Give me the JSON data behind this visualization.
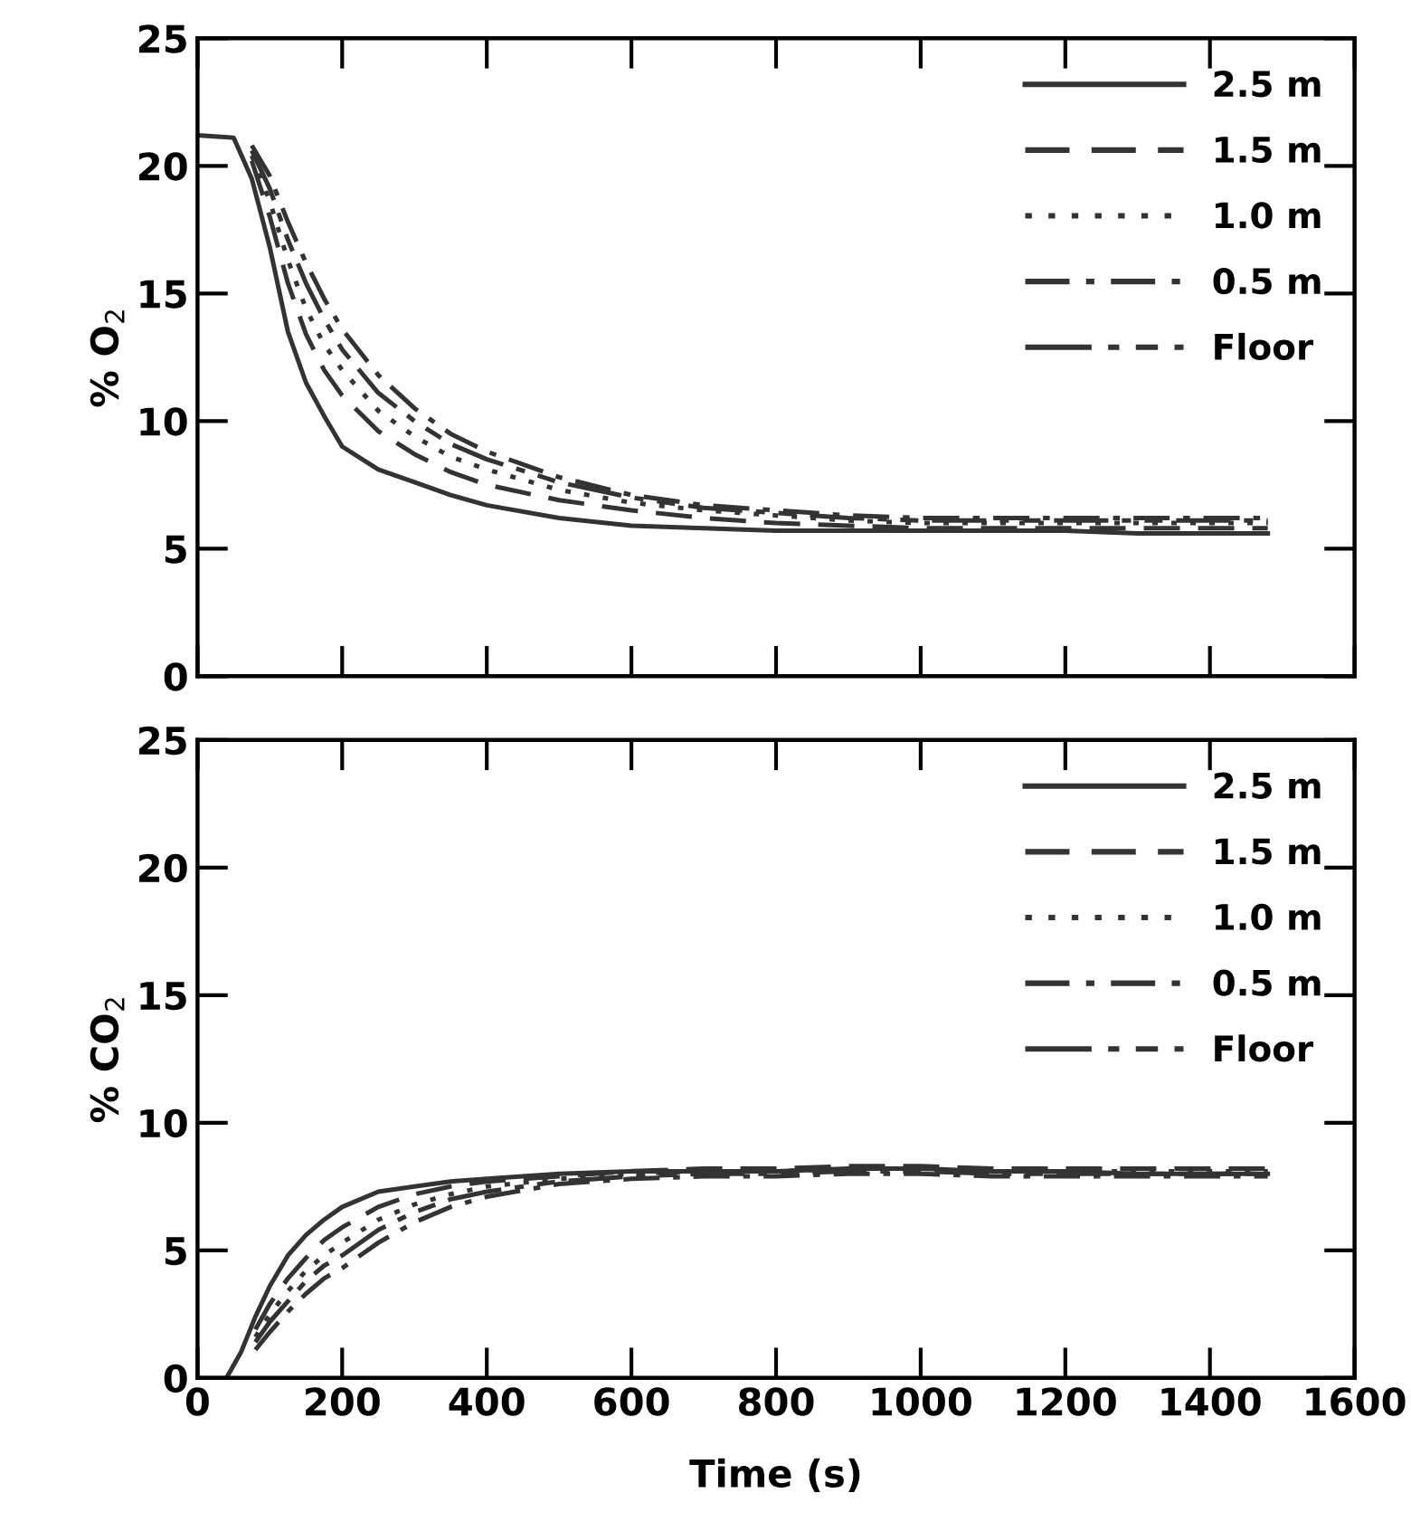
{
  "chart_data": [
    {
      "type": "line",
      "ylabel": "% O$_{2}$",
      "xlim": [
        0,
        1600
      ],
      "ylim": [
        0,
        25
      ],
      "xticks": [
        0,
        200,
        400,
        600,
        800,
        1000,
        1200,
        1400,
        1600
      ],
      "yticks": [
        0,
        5,
        10,
        15,
        20,
        25
      ],
      "tick_labels": "y",
      "legend": "top right",
      "grid": false,
      "x": [
        75,
        100,
        125,
        150,
        175,
        200,
        250,
        300,
        350,
        400,
        500,
        600,
        700,
        800,
        900,
        1000,
        1100,
        1200,
        1300,
        1400,
        1480
      ],
      "series": [
        {
          "name": "2.5 m",
          "color": "#333333",
          "line_style": "solid",
          "x": [
            0,
            50,
            75,
            100,
            125,
            150,
            175,
            200,
            250,
            300,
            350,
            400,
            500,
            600,
            700,
            800,
            900,
            1000,
            1100,
            1200,
            1300,
            1400,
            1480
          ],
          "values": [
            21.2,
            21.1,
            19.5,
            16.8,
            13.5,
            11.5,
            10.2,
            9.0,
            8.1,
            7.6,
            7.1,
            6.7,
            6.2,
            5.9,
            5.8,
            5.7,
            5.7,
            5.7,
            5.7,
            5.7,
            5.6,
            5.6,
            5.6
          ]
        },
        {
          "name": "1.5 m",
          "color": "#333333",
          "line_style": "dashed",
          "values": [
            20.2,
            18.0,
            15.4,
            13.4,
            12.0,
            11.0,
            9.6,
            8.7,
            8.0,
            7.5,
            6.9,
            6.5,
            6.2,
            6.0,
            5.9,
            5.8,
            5.8,
            5.8,
            5.8,
            5.8,
            5.8
          ]
        },
        {
          "name": "1.0 m",
          "color": "#333333",
          "line_style": "dotted",
          "values": [
            20.4,
            18.6,
            16.3,
            14.4,
            13.0,
            12.0,
            10.4,
            9.4,
            8.6,
            8.1,
            7.3,
            6.8,
            6.5,
            6.3,
            6.1,
            6.0,
            6.0,
            6.0,
            6.0,
            6.0,
            6.0
          ]
        },
        {
          "name": "0.5 m",
          "color": "#333333",
          "line_style": "dashdot",
          "values": [
            20.8,
            19.6,
            17.8,
            16.2,
            14.8,
            13.6,
            11.8,
            10.5,
            9.5,
            8.8,
            7.8,
            7.1,
            6.7,
            6.5,
            6.3,
            6.2,
            6.2,
            6.2,
            6.2,
            6.2,
            6.2
          ]
        },
        {
          "name": "Floor",
          "color": "#333333",
          "line_style": "longdashdot",
          "values": [
            20.6,
            19.1,
            17.1,
            15.4,
            14.0,
            12.8,
            11.1,
            10.0,
            9.1,
            8.5,
            7.6,
            7.0,
            6.6,
            6.4,
            6.2,
            6.1,
            6.1,
            6.1,
            6.1,
            6.1,
            6.1
          ]
        }
      ]
    },
    {
      "type": "line",
      "ylabel": "% CO$_{2}$",
      "xlabel": "Time (s)",
      "xlim": [
        0,
        1600
      ],
      "ylim": [
        0,
        25
      ],
      "xticks": [
        0,
        200,
        400,
        600,
        800,
        1000,
        1200,
        1400,
        1600
      ],
      "yticks": [
        0,
        5,
        10,
        15,
        20,
        25
      ],
      "legend": "top right",
      "grid": false,
      "x": [
        80,
        100,
        125,
        150,
        175,
        200,
        250,
        300,
        350,
        400,
        500,
        600,
        700,
        800,
        900,
        1000,
        1100,
        1200,
        1300,
        1400,
        1480
      ],
      "series": [
        {
          "name": "2.5 m",
          "color": "#333333",
          "line_style": "solid",
          "x": [
            40,
            60,
            80,
            100,
            125,
            150,
            175,
            200,
            250,
            300,
            350,
            400,
            500,
            600,
            700,
            800,
            900,
            1000,
            1100,
            1200,
            1300,
            1400,
            1480
          ],
          "values": [
            0,
            1.0,
            2.4,
            3.6,
            4.8,
            5.6,
            6.2,
            6.7,
            7.3,
            7.5,
            7.7,
            7.8,
            8.0,
            8.1,
            8.1,
            8.1,
            8.2,
            8.2,
            8.1,
            8.1,
            8.0,
            8.0,
            8.0
          ]
        },
        {
          "name": "1.5 m",
          "color": "#333333",
          "line_style": "dashed",
          "values": [
            1.9,
            2.9,
            3.9,
            4.7,
            5.4,
            5.9,
            6.7,
            7.2,
            7.5,
            7.7,
            7.9,
            8.1,
            8.2,
            8.2,
            8.3,
            8.3,
            8.2,
            8.2,
            8.2,
            8.2,
            8.2
          ]
        },
        {
          "name": "1.0 m",
          "color": "#333333",
          "line_style": "dotted",
          "values": [
            1.6,
            2.5,
            3.4,
            4.2,
            4.8,
            5.3,
            6.2,
            6.8,
            7.2,
            7.5,
            7.8,
            8.0,
            8.1,
            8.1,
            8.2,
            8.2,
            8.1,
            8.1,
            8.1,
            8.1,
            8.1
          ]
        },
        {
          "name": "0.5 m",
          "color": "#333333",
          "line_style": "dashdot",
          "values": [
            1.1,
            1.8,
            2.6,
            3.3,
            3.9,
            4.3,
            5.3,
            6.1,
            6.7,
            7.1,
            7.6,
            7.8,
            7.9,
            7.9,
            8.0,
            8.0,
            7.9,
            7.9,
            7.9,
            7.9,
            7.9
          ]
        },
        {
          "name": "Floor",
          "color": "#333333",
          "line_style": "longdashdot",
          "values": [
            1.4,
            2.2,
            3.0,
            3.8,
            4.4,
            4.8,
            5.8,
            6.5,
            7.0,
            7.3,
            7.7,
            7.9,
            8.0,
            8.0,
            8.1,
            8.1,
            8.0,
            8.0,
            8.0,
            8.0,
            8.0
          ]
        }
      ]
    }
  ]
}
